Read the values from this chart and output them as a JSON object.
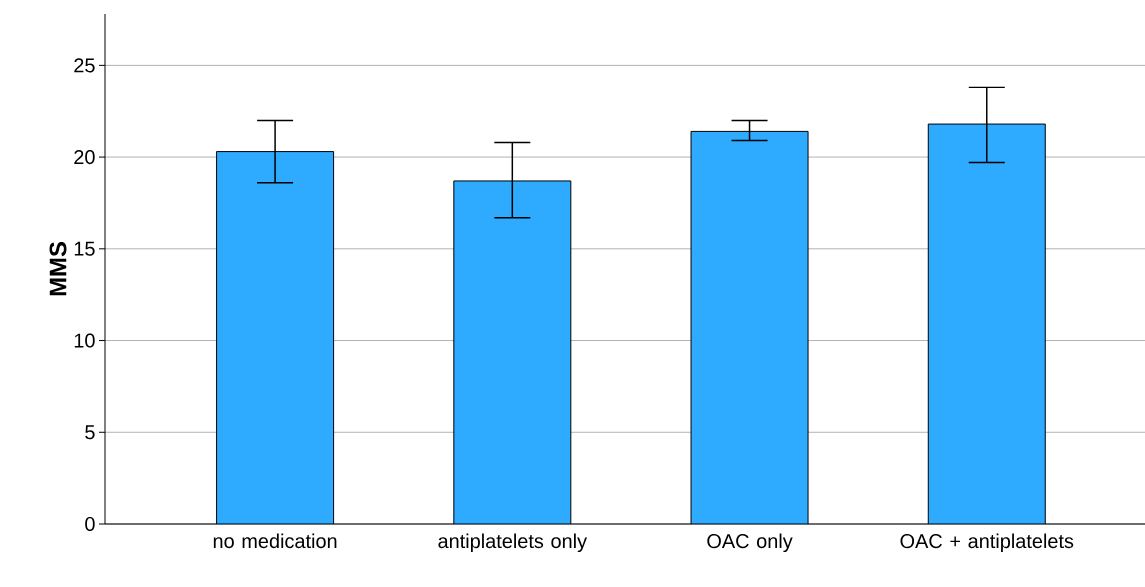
{
  "chart_data": {
    "type": "bar",
    "ylabel": "MMS",
    "categories": [
      "no medication",
      "antiplatelets only",
      "OAC only",
      "OAC + antiplatelets"
    ],
    "values": [
      20.3,
      18.7,
      21.4,
      21.8
    ],
    "errors": [
      [
        18.6,
        22.0
      ],
      [
        16.7,
        20.8
      ],
      [
        20.9,
        22.0
      ],
      [
        19.7,
        23.8
      ]
    ],
    "color": "#2eaaff",
    "ylim": [
      0,
      27.8
    ],
    "yticks": [
      0,
      5,
      10,
      15,
      20,
      25
    ],
    "grid": "y"
  }
}
